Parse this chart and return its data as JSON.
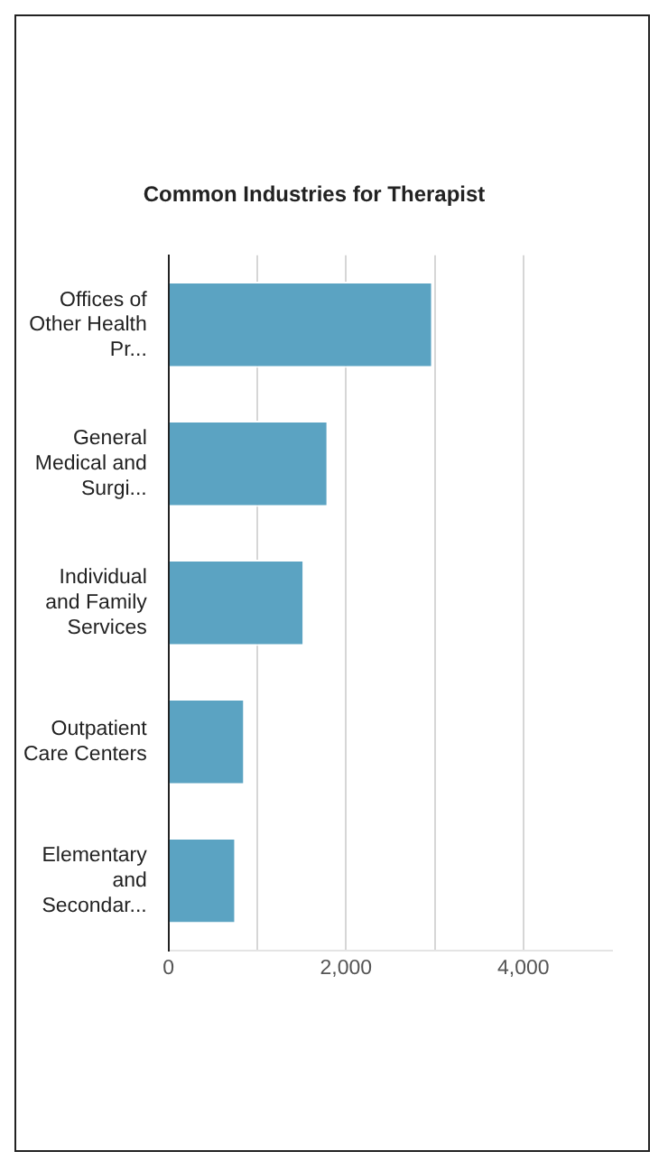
{
  "chart_data": {
    "type": "bar",
    "title": "Common Industries for Therapist",
    "orientation": "horizontal",
    "categories": [
      "Offices of Other Health Pr...",
      "General Medical and Surgi...",
      "Individual and Family Services",
      "Outpatient Care Centers",
      "Elementary and Secondar..."
    ],
    "values": [
      2980,
      1800,
      1530,
      860,
      760
    ],
    "color": "#5ba3c2",
    "xlim": [
      0,
      5000
    ],
    "xticks": [
      0,
      {
        "value": 1000,
        "label": null
      },
      {
        "value": 2000,
        "label": "2,000"
      },
      {
        "value": 3000,
        "label": null
      },
      {
        "value": 4000,
        "label": "4,000"
      }
    ],
    "grid": "x"
  }
}
